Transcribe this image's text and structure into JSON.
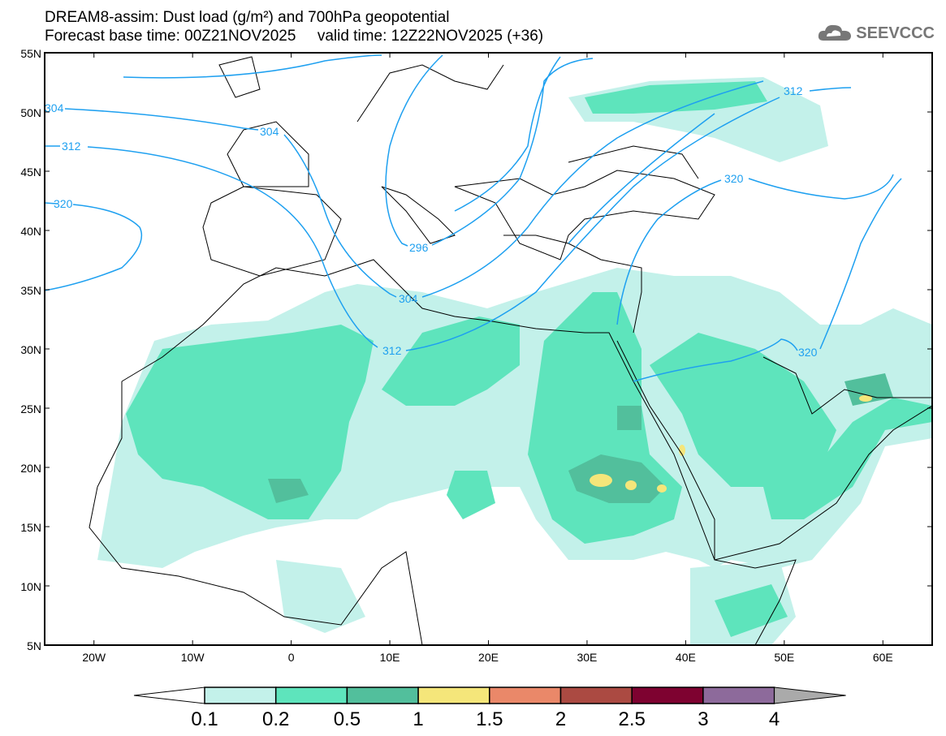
{
  "title": {
    "line1": "DREAM8-assim: Dust load (g/m²) and 700hPa geopotential",
    "line2": "Forecast base time: 00Z21NOV2025     valid time: 12Z22NOV2025 (+36)"
  },
  "logo": {
    "text": "SEEVCCC",
    "icon": "cloud-icon"
  },
  "map": {
    "lon_range": [
      -25,
      65
    ],
    "lat_range": [
      5,
      55
    ],
    "lat_labels": [
      "55N",
      "50N",
      "45N",
      "40N",
      "35N",
      "30N",
      "25N",
      "20N",
      "15N",
      "10N",
      "5N"
    ],
    "lon_labels": [
      "20W",
      "10W",
      "0",
      "10E",
      "20E",
      "30E",
      "40E",
      "50E",
      "60E"
    ],
    "contour_labels": [
      "320",
      "312",
      "304",
      "304",
      "296",
      "304",
      "312",
      "312",
      "320",
      "320"
    ]
  },
  "colorbar": {
    "ticks": [
      "0.1",
      "0.2",
      "0.5",
      "1",
      "1.5",
      "2",
      "2.5",
      "3",
      "4"
    ],
    "colors": [
      "#ffffff",
      "#c3f1ea",
      "#5ee4bc",
      "#52bf9c",
      "#f5e67a",
      "#ea8869",
      "#ab4a42",
      "#7e0230",
      "#8d6a9b",
      "#aaaaaa"
    ]
  }
}
